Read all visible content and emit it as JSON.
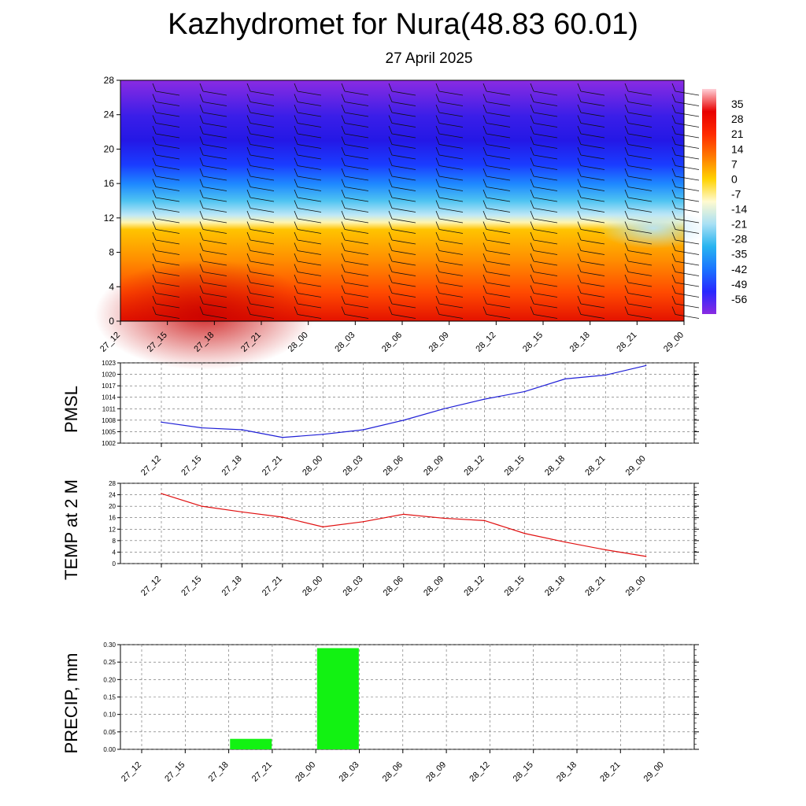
{
  "header": {
    "title": "Kazhydromet for Nura(48.83 60.01)",
    "subtitle": "27 April 2025"
  },
  "colors": {
    "pmsl_line": "#1f1fd6",
    "temp_line": "#e01010",
    "precip_bar": "#12f212",
    "colorbar": [
      "#ffd0d8",
      "#e80000",
      "#ff2a00",
      "#ff7a00",
      "#ffd200",
      "#fffad0",
      "#a8e0f4",
      "#28b4f0",
      "#1a74ff",
      "#2828ff",
      "#8a2be2"
    ]
  },
  "chart_data": [
    {
      "type": "heatmap",
      "name": "vertical-profile",
      "x": [
        "27_12",
        "27_15",
        "27_18",
        "27_21",
        "28_00",
        "28_03",
        "28_06",
        "28_09",
        "28_12",
        "28_15",
        "28_18",
        "28_21",
        "29_00"
      ],
      "yticks": [
        0,
        4,
        8,
        12,
        16,
        20,
        24,
        28
      ],
      "ylim": [
        0,
        28
      ],
      "colorbar_labels": [
        "35",
        "28",
        "21",
        "14",
        "7",
        "0",
        "-7",
        "-14",
        "-21",
        "-28",
        "-35",
        "-42",
        "-49",
        "-56"
      ],
      "colorbar_range": [
        -63,
        42
      ],
      "overlay": "wind barbs"
    },
    {
      "type": "line",
      "ylabel": "PMSL",
      "x": [
        "27_12",
        "27_15",
        "27_18",
        "27_21",
        "28_00",
        "28_03",
        "28_06",
        "28_09",
        "28_12",
        "28_15",
        "28_18",
        "28_21",
        "29_00"
      ],
      "values": [
        1007.5,
        1006.0,
        1005.5,
        1003.5,
        1004.3,
        1005.5,
        1008.0,
        1011.0,
        1013.5,
        1015.5,
        1018.8,
        1019.8,
        1022.3
      ],
      "yticks": [
        "1002",
        "1005",
        "1008",
        "1011",
        "1014",
        "1017",
        "1020",
        "1023"
      ],
      "ylim": [
        1002,
        1023
      ]
    },
    {
      "type": "line",
      "ylabel": "TEMP at 2 M",
      "x": [
        "27_12",
        "27_15",
        "27_18",
        "27_21",
        "28_00",
        "28_03",
        "28_06",
        "28_09",
        "28_12",
        "28_15",
        "28_18",
        "28_21",
        "29_00"
      ],
      "values": [
        24.4,
        20.0,
        18.0,
        16.2,
        12.8,
        14.6,
        17.2,
        15.8,
        15.0,
        10.5,
        7.5,
        4.8,
        2.5
      ],
      "yticks": [
        "0",
        "4",
        "8",
        "12",
        "16",
        "20",
        "24",
        "28"
      ],
      "ylim": [
        0,
        28
      ]
    },
    {
      "type": "bar",
      "ylabel": "PRECIP, mm",
      "x": [
        "27_12",
        "27_15",
        "27_18",
        "27_21",
        "28_00",
        "28_03",
        "28_06",
        "28_09",
        "28_12",
        "28_15",
        "28_18",
        "28_21",
        "29_00"
      ],
      "values": [
        0,
        0,
        0.03,
        0,
        0.29,
        0,
        0,
        0,
        0,
        0,
        0,
        0,
        0
      ],
      "yticks": [
        "0.00",
        "0.05",
        "0.10",
        "0.15",
        "0.20",
        "0.25",
        "0.30"
      ],
      "ylim": [
        0,
        0.3
      ]
    }
  ]
}
